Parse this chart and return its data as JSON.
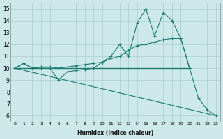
{
  "xlabel": "Humidex (Indice chaleur)",
  "ylabel": "",
  "xlim": [
    -0.5,
    23.5
  ],
  "ylim": [
    5.5,
    15.5
  ],
  "yticks": [
    6,
    7,
    8,
    9,
    10,
    11,
    12,
    13,
    14,
    15
  ],
  "xticks": [
    0,
    1,
    2,
    3,
    4,
    5,
    6,
    7,
    8,
    9,
    10,
    11,
    12,
    13,
    14,
    15,
    16,
    17,
    18,
    19,
    20,
    21,
    22,
    23
  ],
  "bg_color": "#cce8e8",
  "line_color": "#1a7a6e",
  "grid_color": "#aacfcf",
  "lines": [
    {
      "x": [
        0,
        1,
        2,
        3,
        4,
        5,
        6,
        7,
        8,
        9,
        10,
        11,
        12,
        13,
        14,
        15,
        16,
        17,
        18,
        19,
        20
      ],
      "y": [
        10.0,
        10.0,
        10.0,
        10.0,
        10.0,
        10.0,
        10.0,
        10.0,
        10.0,
        10.0,
        10.0,
        10.0,
        10.0,
        10.0,
        10.0,
        10.0,
        10.0,
        10.0,
        10.0,
        10.0,
        10.0
      ]
    },
    {
      "x": [
        0,
        1,
        2,
        3,
        4,
        5,
        6,
        7,
        8,
        9,
        10,
        11,
        12,
        13,
        14,
        15,
        16,
        17,
        18,
        19,
        20,
        21,
        22,
        23
      ],
      "y": [
        10.0,
        10.4,
        10.0,
        10.0,
        10.0,
        9.0,
        9.7,
        9.8,
        9.9,
        10.0,
        10.5,
        11.0,
        12.0,
        11.0,
        13.8,
        15.0,
        12.7,
        14.7,
        14.0,
        12.5,
        10.0,
        7.5,
        6.5,
        6.0
      ]
    },
    {
      "x": [
        0,
        1,
        2,
        3,
        4,
        5,
        6,
        7,
        8,
        9,
        10,
        11,
        12,
        13,
        14,
        15,
        16,
        17,
        18,
        19,
        20
      ],
      "y": [
        10.0,
        10.4,
        10.0,
        10.1,
        10.1,
        10.0,
        10.1,
        10.2,
        10.3,
        10.4,
        10.5,
        10.8,
        11.0,
        11.5,
        11.9,
        12.0,
        12.2,
        12.4,
        12.5,
        12.5,
        10.0
      ]
    },
    {
      "x": [
        0,
        23
      ],
      "y": [
        10.0,
        6.0
      ]
    }
  ]
}
